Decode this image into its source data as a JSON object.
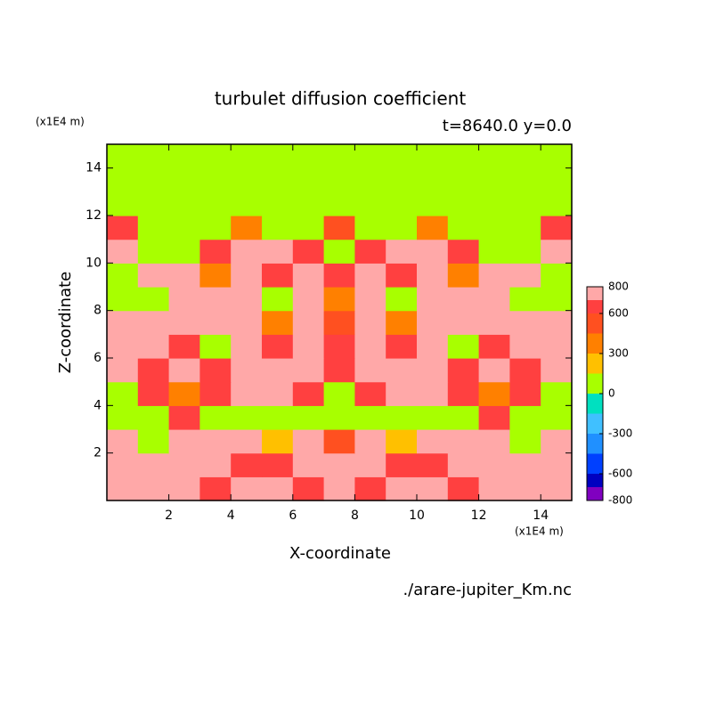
{
  "chart_data": {
    "type": "contour",
    "title": "turbulet diffusion coefficient",
    "subtitle": "t=8640.0 y=0.0",
    "x_label": "X-coordinate",
    "y_label": "Z-coordinate",
    "x_unit": "(x1E4 m)",
    "y_unit": "(x1E4 m)",
    "source": "./arare-jupiter_Km.nc",
    "xlim": [
      0,
      15
    ],
    "ylim": [
      0,
      15
    ],
    "xticks": [
      2,
      4,
      6,
      8,
      10,
      12,
      14
    ],
    "yticks": [
      2,
      4,
      6,
      8,
      10,
      12,
      14
    ],
    "levels": [
      -800,
      -700,
      -600,
      -450,
      -300,
      -150,
      0,
      150,
      300,
      450,
      600,
      700,
      800
    ],
    "colors": [
      "#8000c0",
      "#0000c0",
      "#0040ff",
      "#2090ff",
      "#40c0ff",
      "#00e0c0",
      "#a8ff00",
      "#ffc000",
      "#ff8000",
      "#ff5020",
      "#ff4040",
      "#ffa8a8"
    ],
    "colorbar_ticks": [
      800,
      600,
      300,
      0,
      -300,
      -600,
      -800
    ],
    "z": [
      [
        800,
        800,
        800,
        650,
        800,
        700,
        650,
        800,
        650,
        700,
        800,
        650,
        800,
        800,
        800
      ],
      [
        800,
        700,
        800,
        800,
        650,
        650,
        800,
        700,
        800,
        650,
        650,
        800,
        800,
        700,
        800
      ],
      [
        800,
        0,
        700,
        800,
        700,
        250,
        800,
        500,
        800,
        250,
        700,
        800,
        700,
        0,
        800
      ],
      [
        0,
        0,
        650,
        0,
        0,
        0,
        0,
        0,
        0,
        0,
        0,
        0,
        650,
        0,
        0
      ],
      [
        0,
        650,
        400,
        650,
        800,
        800,
        650,
        0,
        650,
        800,
        800,
        650,
        400,
        650,
        0
      ],
      [
        800,
        650,
        800,
        650,
        800,
        700,
        800,
        650,
        800,
        700,
        800,
        650,
        800,
        650,
        800
      ],
      [
        800,
        800,
        650,
        0,
        800,
        650,
        800,
        650,
        800,
        650,
        800,
        0,
        650,
        800,
        800
      ],
      [
        800,
        800,
        700,
        800,
        800,
        400,
        800,
        500,
        800,
        400,
        800,
        800,
        700,
        800,
        800
      ],
      [
        0,
        0,
        800,
        800,
        700,
        0,
        800,
        400,
        800,
        0,
        700,
        800,
        800,
        0,
        0
      ],
      [
        0,
        800,
        800,
        400,
        800,
        650,
        800,
        650,
        800,
        650,
        800,
        400,
        800,
        800,
        0
      ],
      [
        800,
        0,
        0,
        650,
        800,
        800,
        650,
        0,
        650,
        800,
        800,
        650,
        0,
        0,
        800
      ],
      [
        650,
        0,
        0,
        0,
        400,
        0,
        0,
        500,
        0,
        0,
        400,
        0,
        0,
        0,
        650
      ],
      [
        0,
        0,
        0,
        0,
        0,
        0,
        0,
        0,
        0,
        0,
        0,
        0,
        0,
        0,
        0
      ],
      [
        0,
        0,
        0,
        0,
        0,
        0,
        0,
        0,
        0,
        0,
        0,
        0,
        0,
        0,
        0
      ],
      [
        0,
        0,
        0,
        0,
        0,
        0,
        0,
        0,
        0,
        0,
        0,
        0,
        0,
        0,
        0
      ]
    ]
  }
}
